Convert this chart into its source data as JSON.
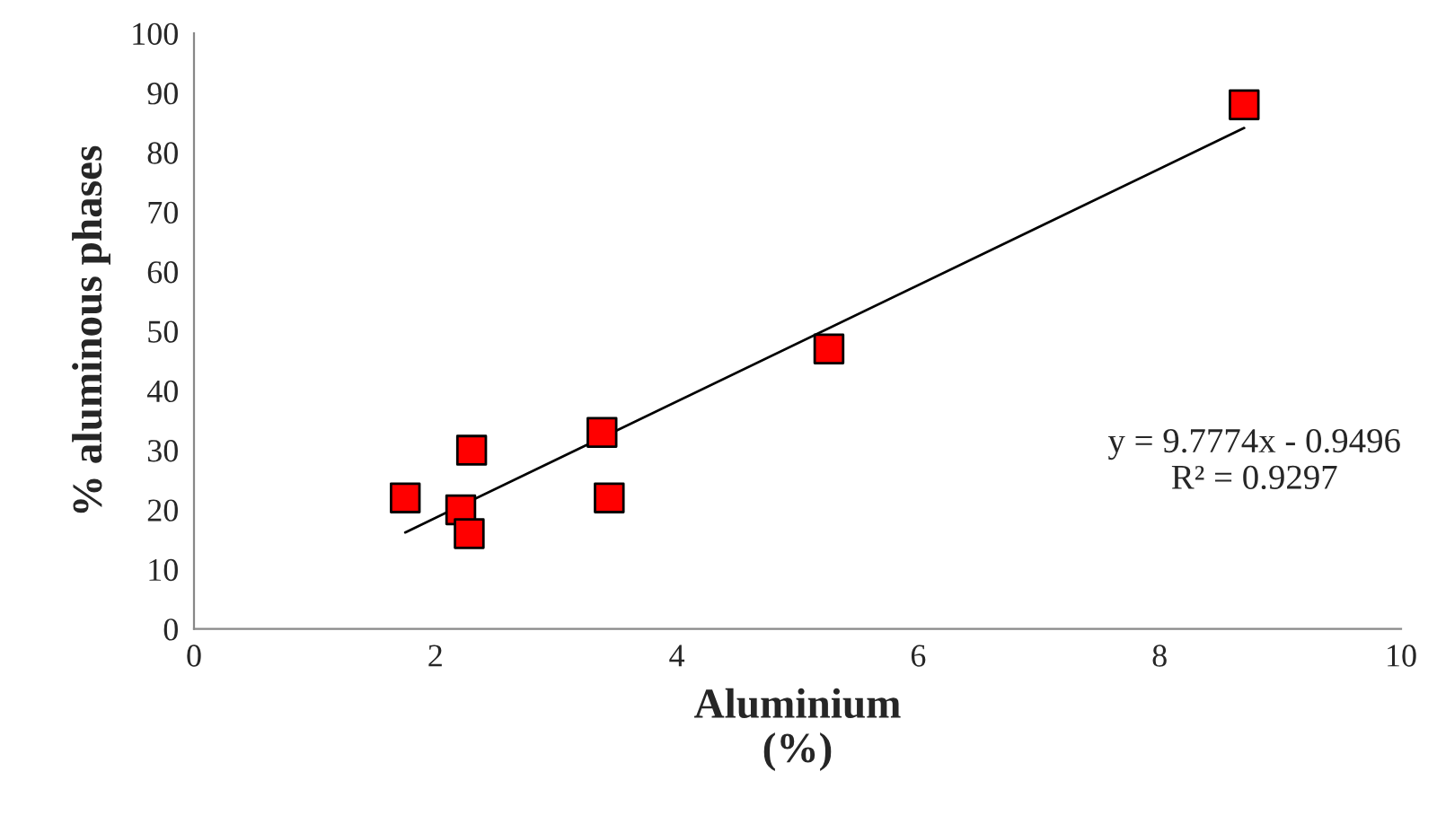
{
  "chart_data": {
    "type": "scatter",
    "xlabel": "Aluminium\n(%)",
    "ylabel": "% aluminous phases",
    "xlim": [
      0,
      10
    ],
    "xticks": [
      0,
      2,
      4,
      6,
      8,
      10
    ],
    "ylim": [
      0,
      100
    ],
    "yticks": [
      0,
      10,
      20,
      30,
      40,
      50,
      60,
      70,
      80,
      90,
      100
    ],
    "grid": false,
    "series": [
      {
        "marker": "square",
        "color": "#ff0000",
        "x": [
          1.75,
          2.21,
          2.28,
          2.3,
          3.38,
          3.44,
          5.26,
          8.7
        ],
        "values": [
          22,
          20,
          16,
          30,
          33,
          22,
          47,
          88
        ]
      },
      {
        "type": "line",
        "color": "#000000",
        "x": [
          1.75,
          8.7
        ],
        "values": [
          16.2,
          84.1
        ]
      }
    ],
    "annotations": [
      "y = 9.7774x - 0.9496\nR² = 0.9297"
    ]
  }
}
